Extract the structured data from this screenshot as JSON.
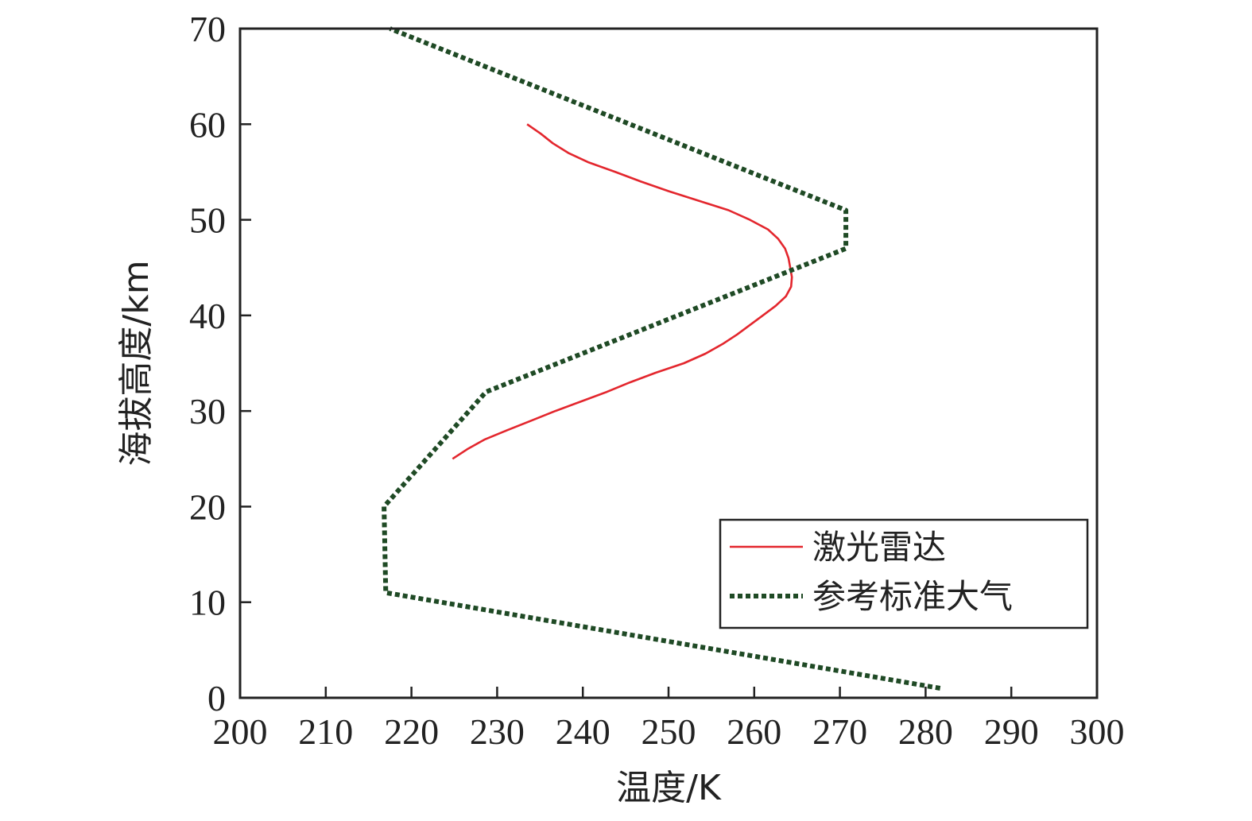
{
  "chart_data": {
    "type": "line",
    "title": "",
    "xlabel": "温度/K",
    "ylabel": "海拔高度/km",
    "xlim": [
      200,
      300
    ],
    "ylim": [
      0,
      70
    ],
    "xticks": [
      200,
      210,
      220,
      230,
      240,
      250,
      260,
      270,
      280,
      290,
      300
    ],
    "yticks": [
      0,
      10,
      20,
      30,
      40,
      50,
      60,
      70
    ],
    "grid": false,
    "legend_position": "bottom-right",
    "series": [
      {
        "name": "激光雷达",
        "color": "#e3262d",
        "style": "solid",
        "points": [
          [
            224.8,
            25
          ],
          [
            226.5,
            26
          ],
          [
            228.5,
            27
          ],
          [
            231.2,
            28
          ],
          [
            234.0,
            29
          ],
          [
            236.8,
            30
          ],
          [
            239.8,
            31
          ],
          [
            242.8,
            32
          ],
          [
            245.5,
            33
          ],
          [
            248.5,
            34
          ],
          [
            251.8,
            35
          ],
          [
            254.3,
            36
          ],
          [
            256.3,
            37
          ],
          [
            258.0,
            38
          ],
          [
            259.5,
            39
          ],
          [
            261.0,
            40
          ],
          [
            262.5,
            41
          ],
          [
            263.7,
            42
          ],
          [
            264.3,
            43
          ],
          [
            264.4,
            44
          ],
          [
            264.2,
            45
          ],
          [
            264.0,
            46
          ],
          [
            263.6,
            47
          ],
          [
            262.8,
            48
          ],
          [
            261.6,
            49
          ],
          [
            259.5,
            50
          ],
          [
            257.0,
            51
          ],
          [
            253.5,
            52
          ],
          [
            250.0,
            53
          ],
          [
            246.8,
            54
          ],
          [
            243.8,
            55
          ],
          [
            240.7,
            56
          ],
          [
            238.3,
            57
          ],
          [
            236.5,
            58
          ],
          [
            235.1,
            59
          ],
          [
            233.5,
            60
          ]
        ]
      },
      {
        "name": "参考标准大气",
        "color": "#1f4a25",
        "style": "dotted",
        "points": [
          [
            281.7,
            1
          ],
          [
            217.0,
            11
          ],
          [
            216.8,
            20
          ],
          [
            228.7,
            32
          ],
          [
            270.7,
            47
          ],
          [
            270.7,
            51
          ],
          [
            217.5,
            70
          ]
        ]
      }
    ]
  }
}
